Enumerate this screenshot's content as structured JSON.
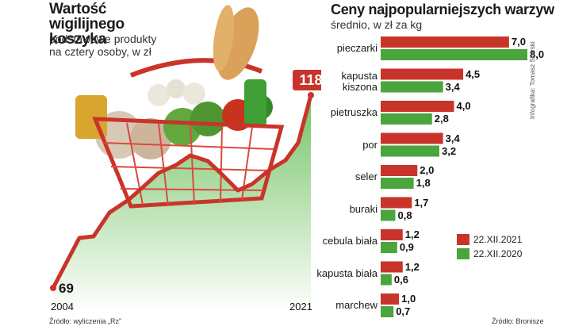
{
  "chart_data": [
    {
      "type": "area",
      "title": "Wartość wigilijnego koszyka",
      "subtitle_line1": "podstawowe produkty",
      "subtitle_line2": "na cztery osoby, w zł",
      "x_start_label": "2004",
      "x_end_label": "2021",
      "start_value_label": "69",
      "end_value_label": "118",
      "start": {
        "x": 2004,
        "y": 69
      },
      "end": {
        "x": 2021,
        "y": 118
      },
      "source": "Źródło: wyliczenia „Rz”"
    },
    {
      "type": "bar",
      "title": "Ceny najpopularniejszych warzyw",
      "subtitle": "średnio, w zł za kg",
      "categories": [
        "pieczarki",
        "kapusta kiszona",
        "pietruszka",
        "por",
        "seler",
        "buraki",
        "cebula biała",
        "kapusta biała",
        "marchew"
      ],
      "series": [
        {
          "name": "22.XII.2021",
          "values": [
            7.0,
            4.5,
            4.0,
            3.4,
            2.0,
            1.7,
            1.2,
            1.2,
            1.0
          ],
          "labels": [
            "7,0",
            "4,5",
            "4,0",
            "3,4",
            "2,0",
            "1,7",
            "1,2",
            "1,2",
            "1,0"
          ]
        },
        {
          "name": "22.XII.2020",
          "values": [
            8.0,
            3.4,
            2.8,
            3.2,
            1.8,
            0.8,
            0.9,
            0.6,
            0.7
          ],
          "labels": [
            "8,0",
            "3,4",
            "2,8",
            "3,2",
            "1,8",
            "0,8",
            "0,9",
            "0,6",
            "0,7"
          ]
        }
      ],
      "source": "Źródło: Bronisze",
      "credit": "Infografika: Tomasz Sitarski",
      "legend_position": "right-bottom"
    }
  ],
  "colors": {
    "red": "#c9342a",
    "green": "#4aa53c",
    "area": "#8fcf7d"
  }
}
